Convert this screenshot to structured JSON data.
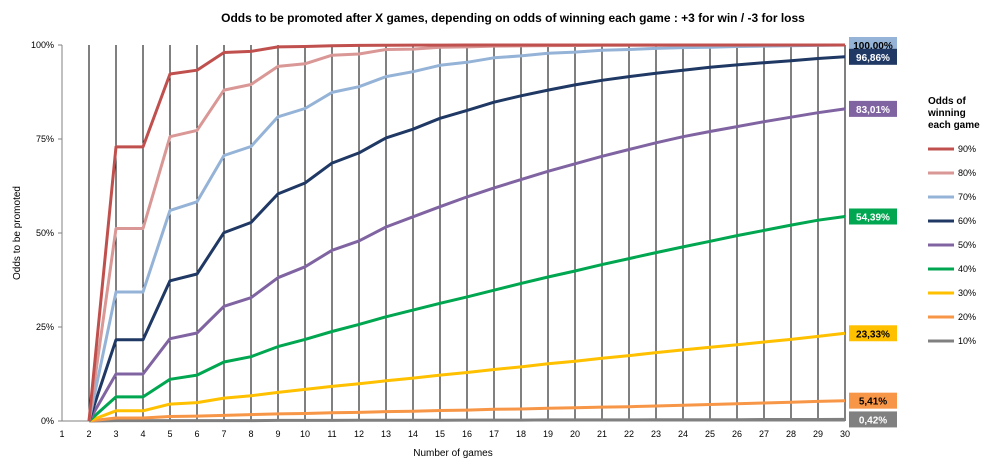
{
  "chart_data": {
    "type": "line",
    "title": "Odds to be promoted after X games, depending on odds of winning each game : +3 for win / -3 for loss",
    "xlabel": "Number of games",
    "ylabel": "Odds to be promoted",
    "x": [
      1,
      2,
      3,
      4,
      5,
      6,
      7,
      8,
      9,
      10,
      11,
      12,
      13,
      14,
      15,
      16,
      17,
      18,
      19,
      20,
      21,
      22,
      23,
      24,
      25,
      26,
      27,
      28,
      29,
      30
    ],
    "xlim": [
      1,
      30
    ],
    "ylim": [
      0,
      100
    ],
    "yticks": [
      {
        "value": 0,
        "label": "0%"
      },
      {
        "value": 25,
        "label": "25%"
      },
      {
        "value": 50,
        "label": "50%"
      },
      {
        "value": 75,
        "label": "75%"
      },
      {
        "value": 100,
        "label": "100%"
      }
    ],
    "grid": "vertical",
    "legend_title": [
      "Odds of",
      "winning",
      "each game"
    ],
    "legend_position": "right",
    "series": [
      {
        "name": "90%",
        "color": "#c0504d",
        "end_label": "",
        "values": [
          null,
          0,
          72.9,
          72.9,
          92.3,
          93.3,
          98.0,
          98.3,
          99.5,
          99.6,
          99.8,
          99.9,
          99.95,
          99.97,
          99.98,
          99.99,
          100,
          100,
          100,
          100,
          100,
          100,
          100,
          100,
          100,
          100,
          100,
          100,
          100,
          100
        ]
      },
      {
        "name": "80%",
        "color": "#d99795",
        "end_label": "",
        "values": [
          null,
          0,
          51.2,
          51.2,
          75.6,
          77.3,
          88.0,
          89.5,
          94.3,
          95.0,
          97.3,
          97.6,
          98.8,
          98.9,
          99.4,
          99.5,
          99.7,
          99.75,
          99.85,
          99.88,
          99.92,
          99.94,
          99.96,
          99.97,
          99.98,
          99.98,
          99.99,
          99.99,
          99.99,
          100
        ]
      },
      {
        "name": "70%",
        "color": "#95b3d7",
        "end_label": "100,00%",
        "values": [
          null,
          0,
          34.3,
          34.3,
          56.0,
          58.3,
          70.6,
          73.0,
          80.9,
          83.1,
          87.4,
          88.9,
          91.6,
          92.9,
          94.6,
          95.4,
          96.6,
          97.1,
          97.8,
          98.1,
          98.6,
          98.8,
          99.1,
          99.3,
          99.4,
          99.6,
          99.7,
          99.8,
          99.9,
          100
        ]
      },
      {
        "name": "60%",
        "color": "#1f3864",
        "end_label": "96,86%",
        "values": [
          null,
          0,
          21.6,
          21.6,
          37.3,
          39.1,
          50.1,
          52.8,
          60.4,
          63.3,
          68.6,
          71.3,
          75.3,
          77.6,
          80.5,
          82.6,
          84.8,
          86.5,
          88.0,
          89.4,
          90.6,
          91.6,
          92.5,
          93.3,
          94.1,
          94.7,
          95.3,
          95.8,
          96.4,
          96.86
        ]
      },
      {
        "name": "50%",
        "color": "#8064a2",
        "end_label": "83,01%",
        "values": [
          null,
          0,
          12.5,
          12.5,
          21.9,
          23.4,
          30.5,
          32.8,
          38.1,
          41.0,
          45.4,
          47.9,
          51.6,
          54.3,
          57.0,
          59.6,
          62.0,
          64.2,
          66.4,
          68.4,
          70.4,
          72.2,
          74.0,
          75.6,
          77.0,
          78.3,
          79.6,
          80.8,
          82.0,
          83.01
        ]
      },
      {
        "name": "40%",
        "color": "#00a650",
        "end_label": "54,39%",
        "values": [
          null,
          0,
          6.4,
          6.4,
          11.1,
          12.2,
          15.7,
          17.1,
          19.8,
          21.7,
          23.8,
          25.7,
          27.7,
          29.5,
          31.3,
          33.0,
          34.8,
          36.6,
          38.3,
          39.9,
          41.6,
          43.2,
          44.8,
          46.3,
          47.8,
          49.3,
          50.7,
          52.1,
          53.4,
          54.39
        ]
      },
      {
        "name": "30%",
        "color": "#ffc000",
        "end_label": "23,33%",
        "values": [
          null,
          0,
          2.7,
          2.7,
          4.5,
          4.9,
          6.1,
          6.7,
          7.6,
          8.4,
          9.2,
          9.9,
          10.7,
          11.4,
          12.2,
          12.9,
          13.7,
          14.4,
          15.2,
          15.9,
          16.7,
          17.4,
          18.2,
          18.9,
          19.6,
          20.3,
          21.0,
          21.7,
          22.5,
          23.33
        ]
      },
      {
        "name": "20%",
        "color": "#f79646",
        "end_label": "5,41%",
        "values": [
          null,
          0,
          0.8,
          0.8,
          1.2,
          1.3,
          1.5,
          1.7,
          1.9,
          2.0,
          2.2,
          2.3,
          2.5,
          2.6,
          2.8,
          2.9,
          3.1,
          3.2,
          3.4,
          3.5,
          3.7,
          3.8,
          4.0,
          4.2,
          4.4,
          4.6,
          4.8,
          5.0,
          5.2,
          5.41
        ]
      },
      {
        "name": "10%",
        "color": "#808080",
        "end_label": "0,42%",
        "values": [
          null,
          0,
          0.1,
          0.1,
          0.1,
          0.1,
          0.1,
          0.1,
          0.15,
          0.15,
          0.15,
          0.2,
          0.2,
          0.2,
          0.2,
          0.25,
          0.25,
          0.25,
          0.3,
          0.3,
          0.3,
          0.3,
          0.35,
          0.35,
          0.35,
          0.35,
          0.4,
          0.4,
          0.4,
          0.42
        ]
      }
    ]
  }
}
